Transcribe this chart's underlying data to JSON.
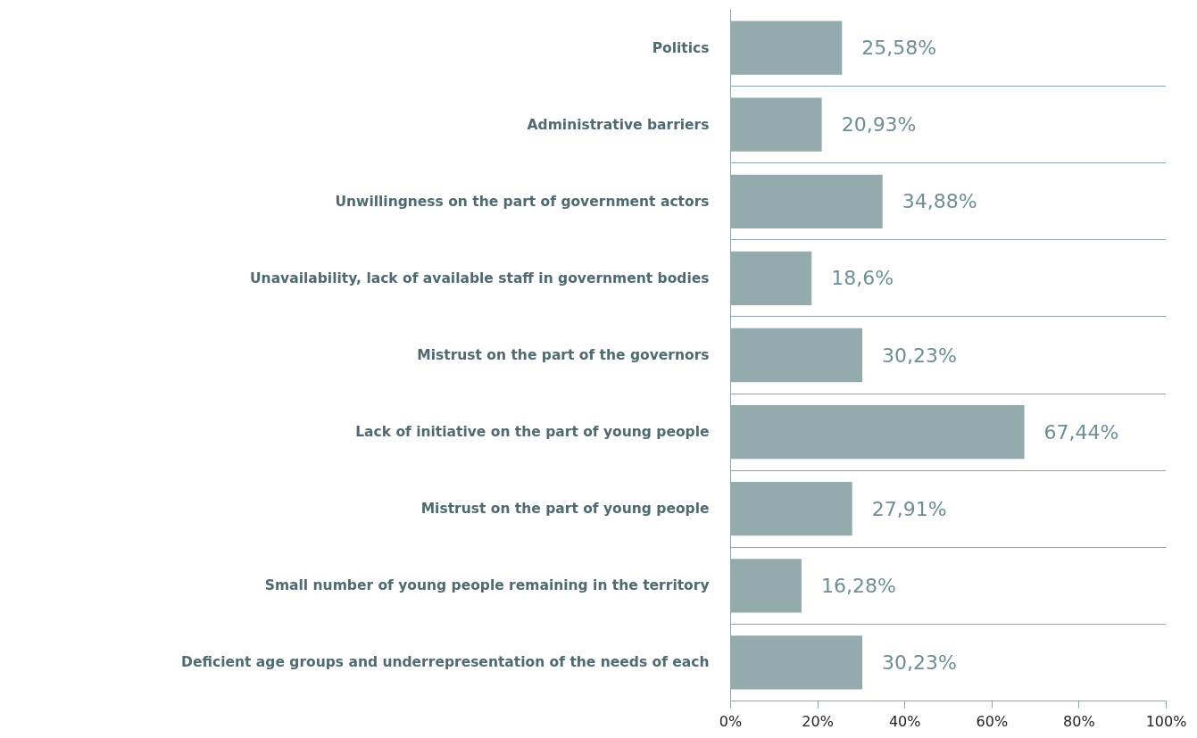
{
  "chart_data": {
    "type": "bar",
    "orientation": "horizontal",
    "categories": [
      "Politics",
      "Administrative barriers",
      "Unwillingness on the part of government actors",
      "Unavailability, lack of available staff in government bodies",
      "Mistrust on the part of the governors",
      "Lack of initiative on the part of young people",
      "Mistrust on the part of young people",
      "Small number of young people remaining in the territory",
      "Deficient age groups and underrepresentation of the needs of each"
    ],
    "values": [
      25.58,
      20.93,
      34.88,
      18.6,
      30.23,
      67.44,
      27.91,
      16.28,
      30.23
    ],
    "value_labels": [
      "25,58%",
      "20,93%",
      "34,88%",
      "18,6%",
      "30,23%",
      "67,44%",
      "27,91%",
      "16,28%",
      "30,23%"
    ],
    "color": "#94abae",
    "xlim": [
      0,
      100
    ],
    "xticks": [
      {
        "value": 0,
        "label": "0%"
      },
      {
        "value": 20,
        "label": "20%"
      },
      {
        "value": 40,
        "label": "40%"
      },
      {
        "value": 60,
        "label": "60%"
      },
      {
        "value": 80,
        "label": "80%"
      },
      {
        "value": 100,
        "label": "100%"
      }
    ],
    "grid": "y"
  }
}
